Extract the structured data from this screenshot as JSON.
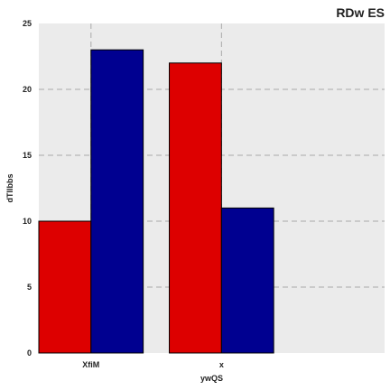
{
  "chart_data": {
    "type": "bar",
    "title": "RDw ES",
    "xlabel": "ywQS",
    "ylabel": "dTIlbbs",
    "categories": [
      "XfiM",
      "x"
    ],
    "series": [
      {
        "values": [
          10,
          22
        ],
        "color": "#dd0000"
      },
      {
        "values": [
          23,
          11
        ],
        "color": "#000090"
      }
    ],
    "ylim": [
      0,
      25
    ],
    "yticks": [
      0,
      5,
      10,
      15,
      20,
      25
    ],
    "grid": true,
    "plot_background": "#ebebeb",
    "grid_color": "#aaaaaa",
    "bar_edge_color": "#000000"
  }
}
